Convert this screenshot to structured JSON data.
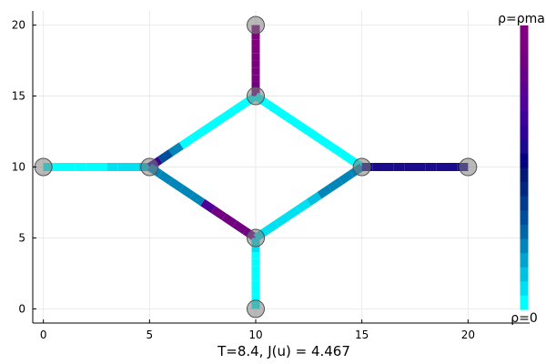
{
  "chart_data": {
    "type": "network",
    "xlabel": "T=8.4,    J(u) = 4.467",
    "xlim": [
      -0.5,
      22.9
    ],
    "ylim": [
      -1.0,
      21.0
    ],
    "grid": true,
    "x_ticks": [
      0,
      5,
      10,
      15,
      20
    ],
    "y_ticks": [
      0,
      5,
      10,
      15,
      20
    ],
    "nodes": [
      {
        "x": 0,
        "y": 10
      },
      {
        "x": 5,
        "y": 10
      },
      {
        "x": 10,
        "y": 20
      },
      {
        "x": 10,
        "y": 15
      },
      {
        "x": 10,
        "y": 5
      },
      {
        "x": 10,
        "y": 0
      },
      {
        "x": 15,
        "y": 10
      },
      {
        "x": 20,
        "y": 10
      }
    ],
    "edges": [
      {
        "from": [
          0,
          10
        ],
        "to": [
          5,
          10
        ],
        "density": [
          0.0,
          0.0,
          0.0,
          0.0,
          0.0,
          0.0,
          0.05,
          0.05,
          0.05,
          0.1
        ]
      },
      {
        "from": [
          5,
          10
        ],
        "to": [
          10,
          15
        ],
        "density": [
          0.7,
          0.3,
          0.2,
          0.0,
          0.0,
          0.0,
          0.0,
          0.0,
          0.0,
          0.0
        ]
      },
      {
        "from": [
          5,
          10
        ],
        "to": [
          10,
          5
        ],
        "density": [
          0.2,
          0.2,
          0.2,
          0.2,
          0.2,
          0.75,
          0.9,
          0.9,
          0.9,
          0.9
        ]
      },
      {
        "from": [
          10,
          15
        ],
        "to": [
          10,
          20
        ],
        "density": [
          0.9,
          0.92,
          0.94,
          0.95,
          0.96,
          0.97,
          0.98,
          0.99,
          1.0,
          1.0
        ]
      },
      {
        "from": [
          10,
          15
        ],
        "to": [
          15,
          10
        ],
        "density": [
          0.0,
          0.0,
          0.0,
          0.0,
          0.0,
          0.0,
          0.0,
          0.0,
          0.0,
          0.0
        ]
      },
      {
        "from": [
          10,
          5
        ],
        "to": [
          10,
          0
        ],
        "density": [
          0.05,
          0.05,
          0.02,
          0.0,
          0.0,
          0.0,
          0.0,
          0.0,
          0.0,
          0.0
        ]
      },
      {
        "from": [
          10,
          5
        ],
        "to": [
          15,
          10
        ],
        "density": [
          0.05,
          0.05,
          0.05,
          0.05,
          0.05,
          0.1,
          0.2,
          0.2,
          0.2,
          0.2
        ]
      },
      {
        "from": [
          15,
          10
        ],
        "to": [
          20,
          10
        ],
        "density": [
          0.6,
          0.6,
          0.6,
          0.6,
          0.6,
          0.6,
          0.6,
          0.6,
          0.6,
          0.6
        ]
      }
    ],
    "colorbar": {
      "top_label": "ρ=ρma",
      "bottom_label": "ρ=0",
      "colors": [
        "#00ffff",
        "#00e0f0",
        "#00c2e0",
        "#00a3cc",
        "#0085b8",
        "#0066a3",
        "#004d99",
        "#003a8c",
        "#00277f",
        "#001a73",
        "#000080",
        "#1a0a8c",
        "#2e0096",
        "#3f0099",
        "#4e0099",
        "#5a0090",
        "#660088",
        "#700080",
        "#7a0080",
        "#800080"
      ]
    }
  }
}
